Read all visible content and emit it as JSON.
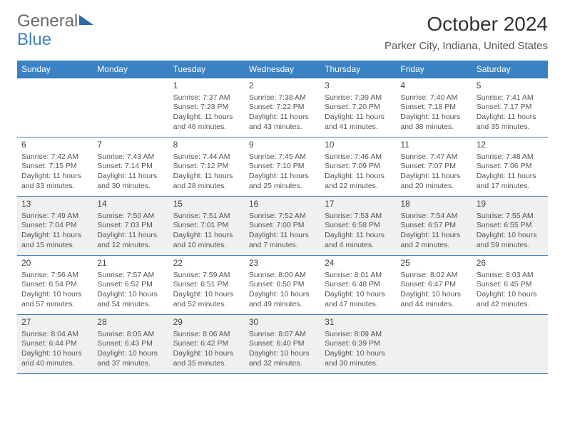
{
  "brand": {
    "part1": "General",
    "part2": "Blue"
  },
  "title": "October 2024",
  "location": "Parker City, Indiana, United States",
  "colors": {
    "header_bg": "#3b82c4",
    "accent": "#2c6aa8",
    "text": "#555555",
    "shade": "#f0f0f0"
  },
  "days_of_week": [
    "Sunday",
    "Monday",
    "Tuesday",
    "Wednesday",
    "Thursday",
    "Friday",
    "Saturday"
  ],
  "cells": [
    {
      "num": "",
      "sunrise": "",
      "sunset": "",
      "day1": "",
      "day2": ""
    },
    {
      "num": "",
      "sunrise": "",
      "sunset": "",
      "day1": "",
      "day2": ""
    },
    {
      "num": "1",
      "sunrise": "Sunrise: 7:37 AM",
      "sunset": "Sunset: 7:23 PM",
      "day1": "Daylight: 11 hours",
      "day2": "and 46 minutes."
    },
    {
      "num": "2",
      "sunrise": "Sunrise: 7:38 AM",
      "sunset": "Sunset: 7:22 PM",
      "day1": "Daylight: 11 hours",
      "day2": "and 43 minutes."
    },
    {
      "num": "3",
      "sunrise": "Sunrise: 7:39 AM",
      "sunset": "Sunset: 7:20 PM",
      "day1": "Daylight: 11 hours",
      "day2": "and 41 minutes."
    },
    {
      "num": "4",
      "sunrise": "Sunrise: 7:40 AM",
      "sunset": "Sunset: 7:18 PM",
      "day1": "Daylight: 11 hours",
      "day2": "and 38 minutes."
    },
    {
      "num": "5",
      "sunrise": "Sunrise: 7:41 AM",
      "sunset": "Sunset: 7:17 PM",
      "day1": "Daylight: 11 hours",
      "day2": "and 35 minutes."
    },
    {
      "num": "6",
      "sunrise": "Sunrise: 7:42 AM",
      "sunset": "Sunset: 7:15 PM",
      "day1": "Daylight: 11 hours",
      "day2": "and 33 minutes."
    },
    {
      "num": "7",
      "sunrise": "Sunrise: 7:43 AM",
      "sunset": "Sunset: 7:14 PM",
      "day1": "Daylight: 11 hours",
      "day2": "and 30 minutes."
    },
    {
      "num": "8",
      "sunrise": "Sunrise: 7:44 AM",
      "sunset": "Sunset: 7:12 PM",
      "day1": "Daylight: 11 hours",
      "day2": "and 28 minutes."
    },
    {
      "num": "9",
      "sunrise": "Sunrise: 7:45 AM",
      "sunset": "Sunset: 7:10 PM",
      "day1": "Daylight: 11 hours",
      "day2": "and 25 minutes."
    },
    {
      "num": "10",
      "sunrise": "Sunrise: 7:46 AM",
      "sunset": "Sunset: 7:09 PM",
      "day1": "Daylight: 11 hours",
      "day2": "and 22 minutes."
    },
    {
      "num": "11",
      "sunrise": "Sunrise: 7:47 AM",
      "sunset": "Sunset: 7:07 PM",
      "day1": "Daylight: 11 hours",
      "day2": "and 20 minutes."
    },
    {
      "num": "12",
      "sunrise": "Sunrise: 7:48 AM",
      "sunset": "Sunset: 7:06 PM",
      "day1": "Daylight: 11 hours",
      "day2": "and 17 minutes."
    },
    {
      "num": "13",
      "sunrise": "Sunrise: 7:49 AM",
      "sunset": "Sunset: 7:04 PM",
      "day1": "Daylight: 11 hours",
      "day2": "and 15 minutes.",
      "shaded": true
    },
    {
      "num": "14",
      "sunrise": "Sunrise: 7:50 AM",
      "sunset": "Sunset: 7:03 PM",
      "day1": "Daylight: 11 hours",
      "day2": "and 12 minutes.",
      "shaded": true
    },
    {
      "num": "15",
      "sunrise": "Sunrise: 7:51 AM",
      "sunset": "Sunset: 7:01 PM",
      "day1": "Daylight: 11 hours",
      "day2": "and 10 minutes.",
      "shaded": true
    },
    {
      "num": "16",
      "sunrise": "Sunrise: 7:52 AM",
      "sunset": "Sunset: 7:00 PM",
      "day1": "Daylight: 11 hours",
      "day2": "and 7 minutes.",
      "shaded": true
    },
    {
      "num": "17",
      "sunrise": "Sunrise: 7:53 AM",
      "sunset": "Sunset: 6:58 PM",
      "day1": "Daylight: 11 hours",
      "day2": "and 4 minutes.",
      "shaded": true
    },
    {
      "num": "18",
      "sunrise": "Sunrise: 7:54 AM",
      "sunset": "Sunset: 6:57 PM",
      "day1": "Daylight: 11 hours",
      "day2": "and 2 minutes.",
      "shaded": true
    },
    {
      "num": "19",
      "sunrise": "Sunrise: 7:55 AM",
      "sunset": "Sunset: 6:55 PM",
      "day1": "Daylight: 10 hours",
      "day2": "and 59 minutes.",
      "shaded": true
    },
    {
      "num": "20",
      "sunrise": "Sunrise: 7:56 AM",
      "sunset": "Sunset: 6:54 PM",
      "day1": "Daylight: 10 hours",
      "day2": "and 57 minutes."
    },
    {
      "num": "21",
      "sunrise": "Sunrise: 7:57 AM",
      "sunset": "Sunset: 6:52 PM",
      "day1": "Daylight: 10 hours",
      "day2": "and 54 minutes."
    },
    {
      "num": "22",
      "sunrise": "Sunrise: 7:59 AM",
      "sunset": "Sunset: 6:51 PM",
      "day1": "Daylight: 10 hours",
      "day2": "and 52 minutes."
    },
    {
      "num": "23",
      "sunrise": "Sunrise: 8:00 AM",
      "sunset": "Sunset: 6:50 PM",
      "day1": "Daylight: 10 hours",
      "day2": "and 49 minutes."
    },
    {
      "num": "24",
      "sunrise": "Sunrise: 8:01 AM",
      "sunset": "Sunset: 6:48 PM",
      "day1": "Daylight: 10 hours",
      "day2": "and 47 minutes."
    },
    {
      "num": "25",
      "sunrise": "Sunrise: 8:02 AM",
      "sunset": "Sunset: 6:47 PM",
      "day1": "Daylight: 10 hours",
      "day2": "and 44 minutes."
    },
    {
      "num": "26",
      "sunrise": "Sunrise: 8:03 AM",
      "sunset": "Sunset: 6:45 PM",
      "day1": "Daylight: 10 hours",
      "day2": "and 42 minutes."
    },
    {
      "num": "27",
      "sunrise": "Sunrise: 8:04 AM",
      "sunset": "Sunset: 6:44 PM",
      "day1": "Daylight: 10 hours",
      "day2": "and 40 minutes.",
      "shaded": true
    },
    {
      "num": "28",
      "sunrise": "Sunrise: 8:05 AM",
      "sunset": "Sunset: 6:43 PM",
      "day1": "Daylight: 10 hours",
      "day2": "and 37 minutes.",
      "shaded": true
    },
    {
      "num": "29",
      "sunrise": "Sunrise: 8:06 AM",
      "sunset": "Sunset: 6:42 PM",
      "day1": "Daylight: 10 hours",
      "day2": "and 35 minutes.",
      "shaded": true
    },
    {
      "num": "30",
      "sunrise": "Sunrise: 8:07 AM",
      "sunset": "Sunset: 6:40 PM",
      "day1": "Daylight: 10 hours",
      "day2": "and 32 minutes.",
      "shaded": true
    },
    {
      "num": "31",
      "sunrise": "Sunrise: 8:09 AM",
      "sunset": "Sunset: 6:39 PM",
      "day1": "Daylight: 10 hours",
      "day2": "and 30 minutes.",
      "shaded": true
    },
    {
      "num": "",
      "sunrise": "",
      "sunset": "",
      "day1": "",
      "day2": "",
      "shaded": true
    },
    {
      "num": "",
      "sunrise": "",
      "sunset": "",
      "day1": "",
      "day2": "",
      "shaded": true
    }
  ]
}
